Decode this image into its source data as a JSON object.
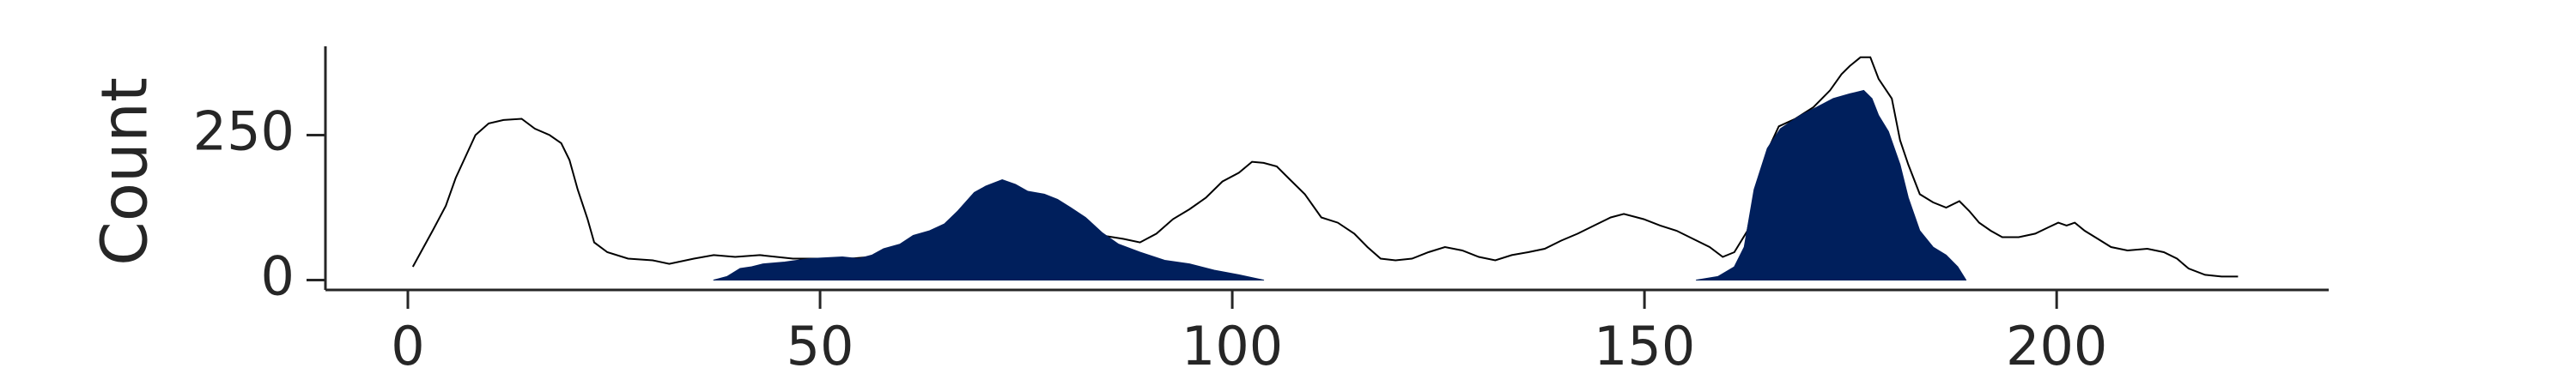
{
  "chart_data": {
    "type": "area",
    "ylabel": "Count",
    "xlim": [
      -10,
      233
    ],
    "ylim": [
      -17,
      403
    ],
    "xticks": [
      0,
      50,
      100,
      150,
      200
    ],
    "yticks": [
      0,
      250
    ],
    "series": [
      {
        "color": "#000000",
        "fill": false,
        "x": [
          0.6,
          3.0,
          4.6,
          5.8,
          7.0,
          8.2,
          9.8,
          11.6,
          13.8,
          15.4,
          17.2,
          18.6,
          19.6,
          20.6,
          21.8,
          22.6,
          24.2,
          26.7,
          29.7,
          31.7,
          34.7,
          37.1,
          39.7,
          42.7,
          46.7,
          50.7,
          53.7,
          58.7,
          66.7,
          74.7,
          82.8,
          86.8,
          88.8,
          90.8,
          92.8,
          94.8,
          96.8,
          98.8,
          100.8,
          102.4,
          103.8,
          105.4,
          106.8,
          108.8,
          110.8,
          112.8,
          114.8,
          116.4,
          118.0,
          119.8,
          121.8,
          123.8,
          125.8,
          127.9,
          129.9,
          131.9,
          133.9,
          135.9,
          137.9,
          139.9,
          141.9,
          143.9,
          145.9,
          147.5,
          149.9,
          151.9,
          153.9,
          155.9,
          157.9,
          159.5,
          160.9,
          162.5,
          163.5,
          164.9,
          166.3,
          168.3,
          170.5,
          172.5,
          173.9,
          174.9,
          176.2,
          177.4,
          178.4,
          180.0,
          181.0,
          182.0,
          183.4,
          185.0,
          186.6,
          188.2,
          189.4,
          190.6,
          192.0,
          193.4,
          195.4,
          197.4,
          199.0,
          200.2,
          201.2,
          202.2,
          203.4,
          205.0,
          206.6,
          208.6,
          211.0,
          213.0,
          214.6,
          216.0,
          218.0,
          220.0,
          222.0
        ],
        "values": [
          23,
          85,
          128,
          176,
          213,
          250,
          270,
          276,
          278,
          261,
          250,
          236,
          207,
          156,
          105,
          65,
          48,
          37,
          34,
          28,
          37,
          43,
          40,
          43,
          37,
          37,
          37,
          43,
          57,
          71,
          80,
          71,
          65,
          80,
          105,
          122,
          142,
          170,
          185,
          204,
          202,
          196,
          176,
          148,
          108,
          99,
          80,
          57,
          37,
          34,
          37,
          48,
          57,
          51,
          40,
          34,
          43,
          48,
          54,
          68,
          80,
          94,
          108,
          114,
          105,
          94,
          85,
          71,
          57,
          40,
          48,
          85,
          156,
          222,
          265,
          278,
          298,
          327,
          355,
          369,
          384,
          384,
          347,
          313,
          241,
          199,
          148,
          134,
          125,
          136,
          119,
          99,
          85,
          74,
          74,
          80,
          91,
          99,
          94,
          99,
          85,
          71,
          57,
          51,
          54,
          48,
          37,
          20,
          9,
          6,
          6
        ]
      },
      {
        "color": "#001f5c",
        "fill": true,
        "x": [
          37.1,
          38.7,
          40.3,
          41.7,
          43.1,
          45.7,
          48.7,
          52.7,
          54.7,
          56.3,
          57.7,
          59.7,
          61.3,
          63.3,
          65.1,
          66.7,
          68.7,
          70.1,
          72.1,
          73.7,
          75.2,
          77.2,
          78.8,
          80.4,
          82.2,
          84.2,
          86.2,
          88.8,
          91.8,
          94.8,
          97.8,
          100.8,
          102.8,
          103.8
        ],
        "values": [
          0,
          6,
          20,
          23,
          28,
          31,
          37,
          40,
          37,
          43,
          54,
          62,
          77,
          85,
          97,
          119,
          151,
          162,
          173,
          165,
          153,
          148,
          139,
          125,
          108,
          82,
          62,
          48,
          34,
          28,
          17,
          9,
          3,
          0
        ]
      },
      {
        "color": "#001f5c",
        "fill": true,
        "x": [
          156.3,
          158.9,
          160.9,
          162.1,
          163.3,
          164.9,
          166.5,
          168.9,
          170.9,
          172.9,
          174.9,
          176.6,
          177.6,
          178.4,
          179.6,
          181.0,
          182.0,
          183.4,
          185.0,
          186.6,
          188.0,
          189.0
        ],
        "values": [
          0,
          6,
          23,
          57,
          156,
          227,
          261,
          284,
          298,
          313,
          321,
          327,
          313,
          284,
          256,
          199,
          142,
          85,
          57,
          43,
          23,
          0
        ]
      }
    ]
  }
}
